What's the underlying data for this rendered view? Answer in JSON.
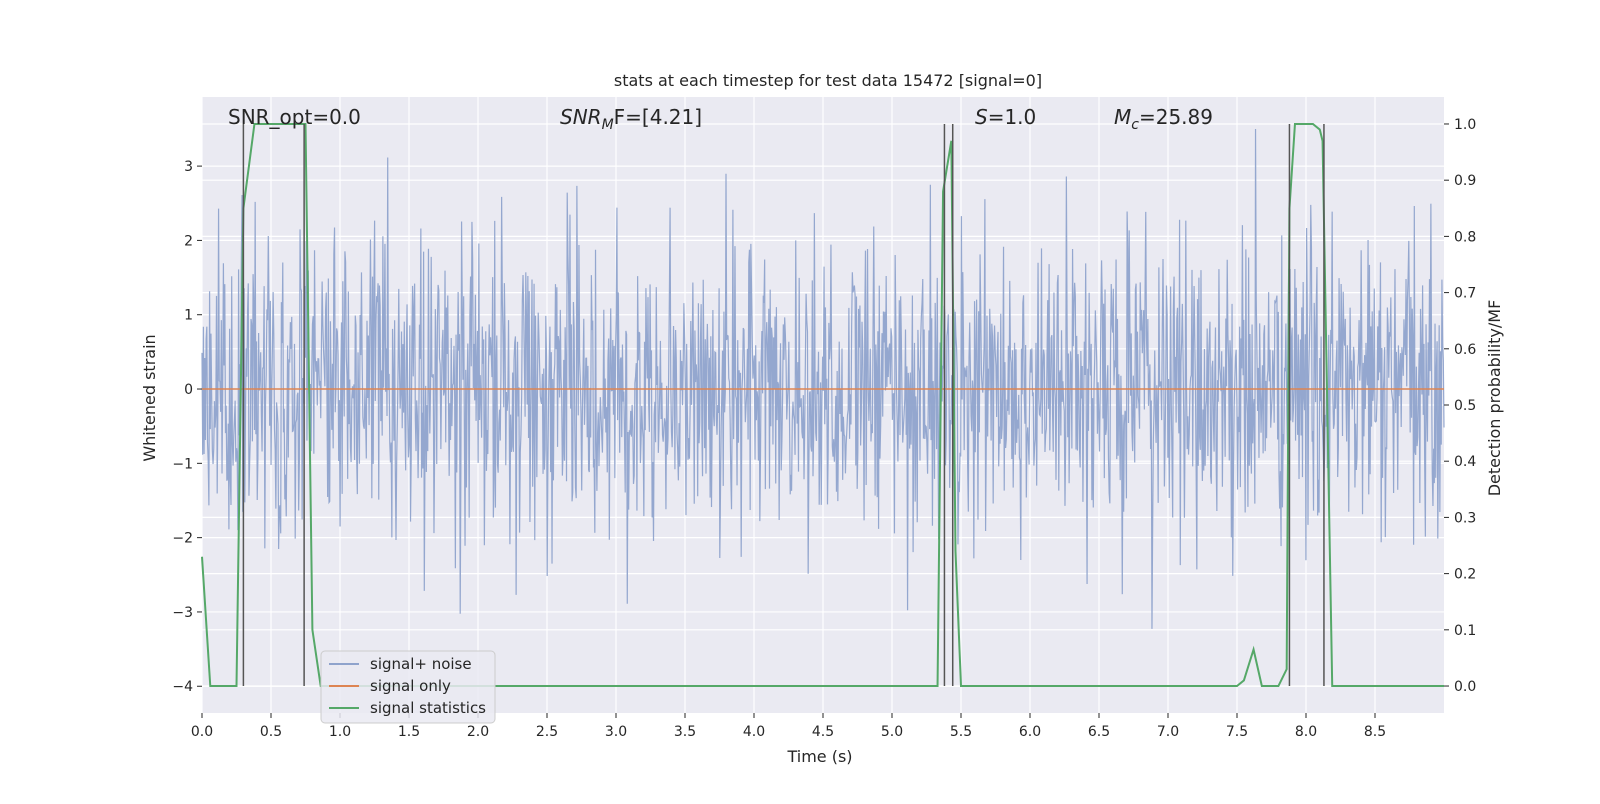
{
  "chart_data": {
    "type": "line",
    "title": "stats at each timestep for test data 15472 [signal=0]",
    "xlabel": "Time (s)",
    "ylabel": "Whitened strain",
    "ylabel_right": "Detection probability/MF",
    "xlim": [
      0.0,
      9.0
    ],
    "ylim": [
      -4.36,
      3.93
    ],
    "ylim_right": [
      -0.048,
      1.048
    ],
    "x_ticks": [
      0.0,
      0.5,
      1.0,
      1.5,
      2.0,
      2.5,
      3.0,
      3.5,
      4.0,
      4.5,
      5.0,
      5.5,
      6.0,
      6.5,
      7.0,
      7.5,
      8.0,
      8.5
    ],
    "x_tick_labels": [
      "0.0",
      "0.5",
      "1.0",
      "1.5",
      "2.0",
      "2.5",
      "3.0",
      "3.5",
      "4.0",
      "4.5",
      "5.0",
      "5.5",
      "6.0",
      "6.5",
      "7.0",
      "7.5",
      "8.0",
      "8.5"
    ],
    "y_ticks": [
      -4,
      -3,
      -2,
      -1,
      0,
      1,
      2,
      3
    ],
    "y_tick_labels": [
      "−4",
      "−3",
      "−2",
      "−1",
      "0",
      "1",
      "2",
      "3"
    ],
    "y2_ticks": [
      0.0,
      0.1,
      0.2,
      0.3,
      0.4,
      0.5,
      0.6,
      0.7,
      0.8,
      0.9,
      1.0
    ],
    "y2_tick_labels": [
      "0.0",
      "0.1",
      "0.2",
      "0.3",
      "0.4",
      "0.5",
      "0.6",
      "0.7",
      "0.8",
      "0.9",
      "1.0"
    ],
    "grid": true,
    "legend_position": "bottom-left",
    "annotations": {
      "snr_opt": "SNR_opt=0.0",
      "snr_mf_symbol": "SNR",
      "snr_mf_sub": "M",
      "snr_mf_rest": "F=[4.21]",
      "s_symbol": "S",
      "s_rest": "=1.0",
      "mc_symbol": "M",
      "mc_sub": "c",
      "mc_rest": "=25.89"
    },
    "series": [
      {
        "name": "signal+ noise",
        "color": "#8fa3cc",
        "description": "whitened strain noise band, amplitude mostly within ±2, peaks to ±3.6",
        "envelope": {
          "typical": 1.4,
          "max": 3.5,
          "min": -3.7
        }
      },
      {
        "name": "signal only",
        "color": "#dd8452",
        "x": [
          0.0,
          9.0
        ],
        "y": [
          0.0,
          0.0
        ]
      },
      {
        "name": "signal statistics",
        "color": "#55a868",
        "x": [
          0.0,
          0.06,
          0.25,
          0.3,
          0.38,
          0.72,
          0.75,
          0.8,
          0.86,
          5.33,
          5.37,
          5.43,
          5.46,
          5.5,
          7.5,
          7.55,
          7.62,
          7.68,
          7.8,
          7.86,
          7.88,
          7.92,
          8.05,
          8.1,
          8.12,
          8.19,
          9.0
        ],
        "y": [
          0.23,
          0.0,
          0.0,
          0.85,
          1.0,
          1.0,
          1.0,
          0.1,
          0.0,
          0.0,
          0.88,
          0.97,
          0.24,
          0.0,
          0.0,
          0.01,
          0.065,
          0.0,
          0.0,
          0.03,
          0.85,
          1.0,
          1.0,
          0.99,
          0.97,
          0.0,
          0.0
        ]
      }
    ],
    "vertical_lines_x": [
      0.3,
      0.74,
      5.38,
      5.44,
      7.88,
      8.13
    ]
  }
}
